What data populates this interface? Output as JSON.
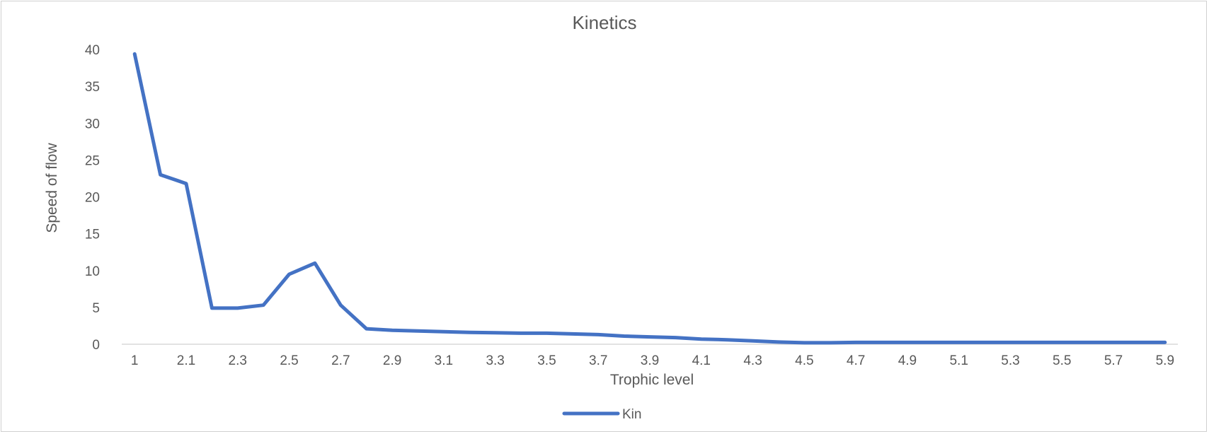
{
  "colors": {
    "series": "#4472C4",
    "axis": "#d9d9d9",
    "text": "#595959"
  },
  "chart_data": {
    "type": "line",
    "title": "Kinetics",
    "xlabel": "Trophic level",
    "ylabel": "Speed of flow",
    "ylim": [
      0,
      40
    ],
    "yticks": [
      "0",
      "5",
      "10",
      "15",
      "20",
      "25",
      "30",
      "35",
      "40"
    ],
    "grid": false,
    "legend_position": "bottom",
    "categories": [
      "1",
      "2",
      "2.1",
      "2.2",
      "2.3",
      "2.4",
      "2.5",
      "2.6",
      "2.7",
      "2.8",
      "2.9",
      "3",
      "3.1",
      "3.2",
      "3.3",
      "3.4",
      "3.5",
      "3.6",
      "3.7",
      "3.8",
      "3.9",
      "4",
      "4.1",
      "4.2",
      "4.3",
      "4.4",
      "4.5",
      "4.6",
      "4.7",
      "4.8",
      "4.9",
      "5",
      "5.1",
      "5.2",
      "5.3",
      "5.4",
      "5.5",
      "5.6",
      "5.7",
      "5.8",
      "5.9"
    ],
    "visible_tick_labels": [
      "1",
      "2.1",
      "2.3",
      "2.5",
      "2.7",
      "2.9",
      "3.1",
      "3.3",
      "3.5",
      "3.7",
      "3.9",
      "4.1",
      "4.3",
      "4.5",
      "4.7",
      "4.9",
      "5.1",
      "5.3",
      "5.5",
      "5.7",
      "5.9"
    ],
    "series": [
      {
        "name": "Kin",
        "values": [
          39.4,
          23.0,
          21.8,
          4.9,
          4.9,
          5.3,
          9.5,
          11.0,
          5.3,
          2.1,
          1.9,
          1.8,
          1.7,
          1.6,
          1.55,
          1.5,
          1.5,
          1.4,
          1.3,
          1.1,
          1.0,
          0.9,
          0.7,
          0.6,
          0.45,
          0.3,
          0.2,
          0.2,
          0.25,
          0.25,
          0.25,
          0.25,
          0.25,
          0.25,
          0.25,
          0.25,
          0.25,
          0.25,
          0.25,
          0.25,
          0.25
        ]
      }
    ]
  }
}
